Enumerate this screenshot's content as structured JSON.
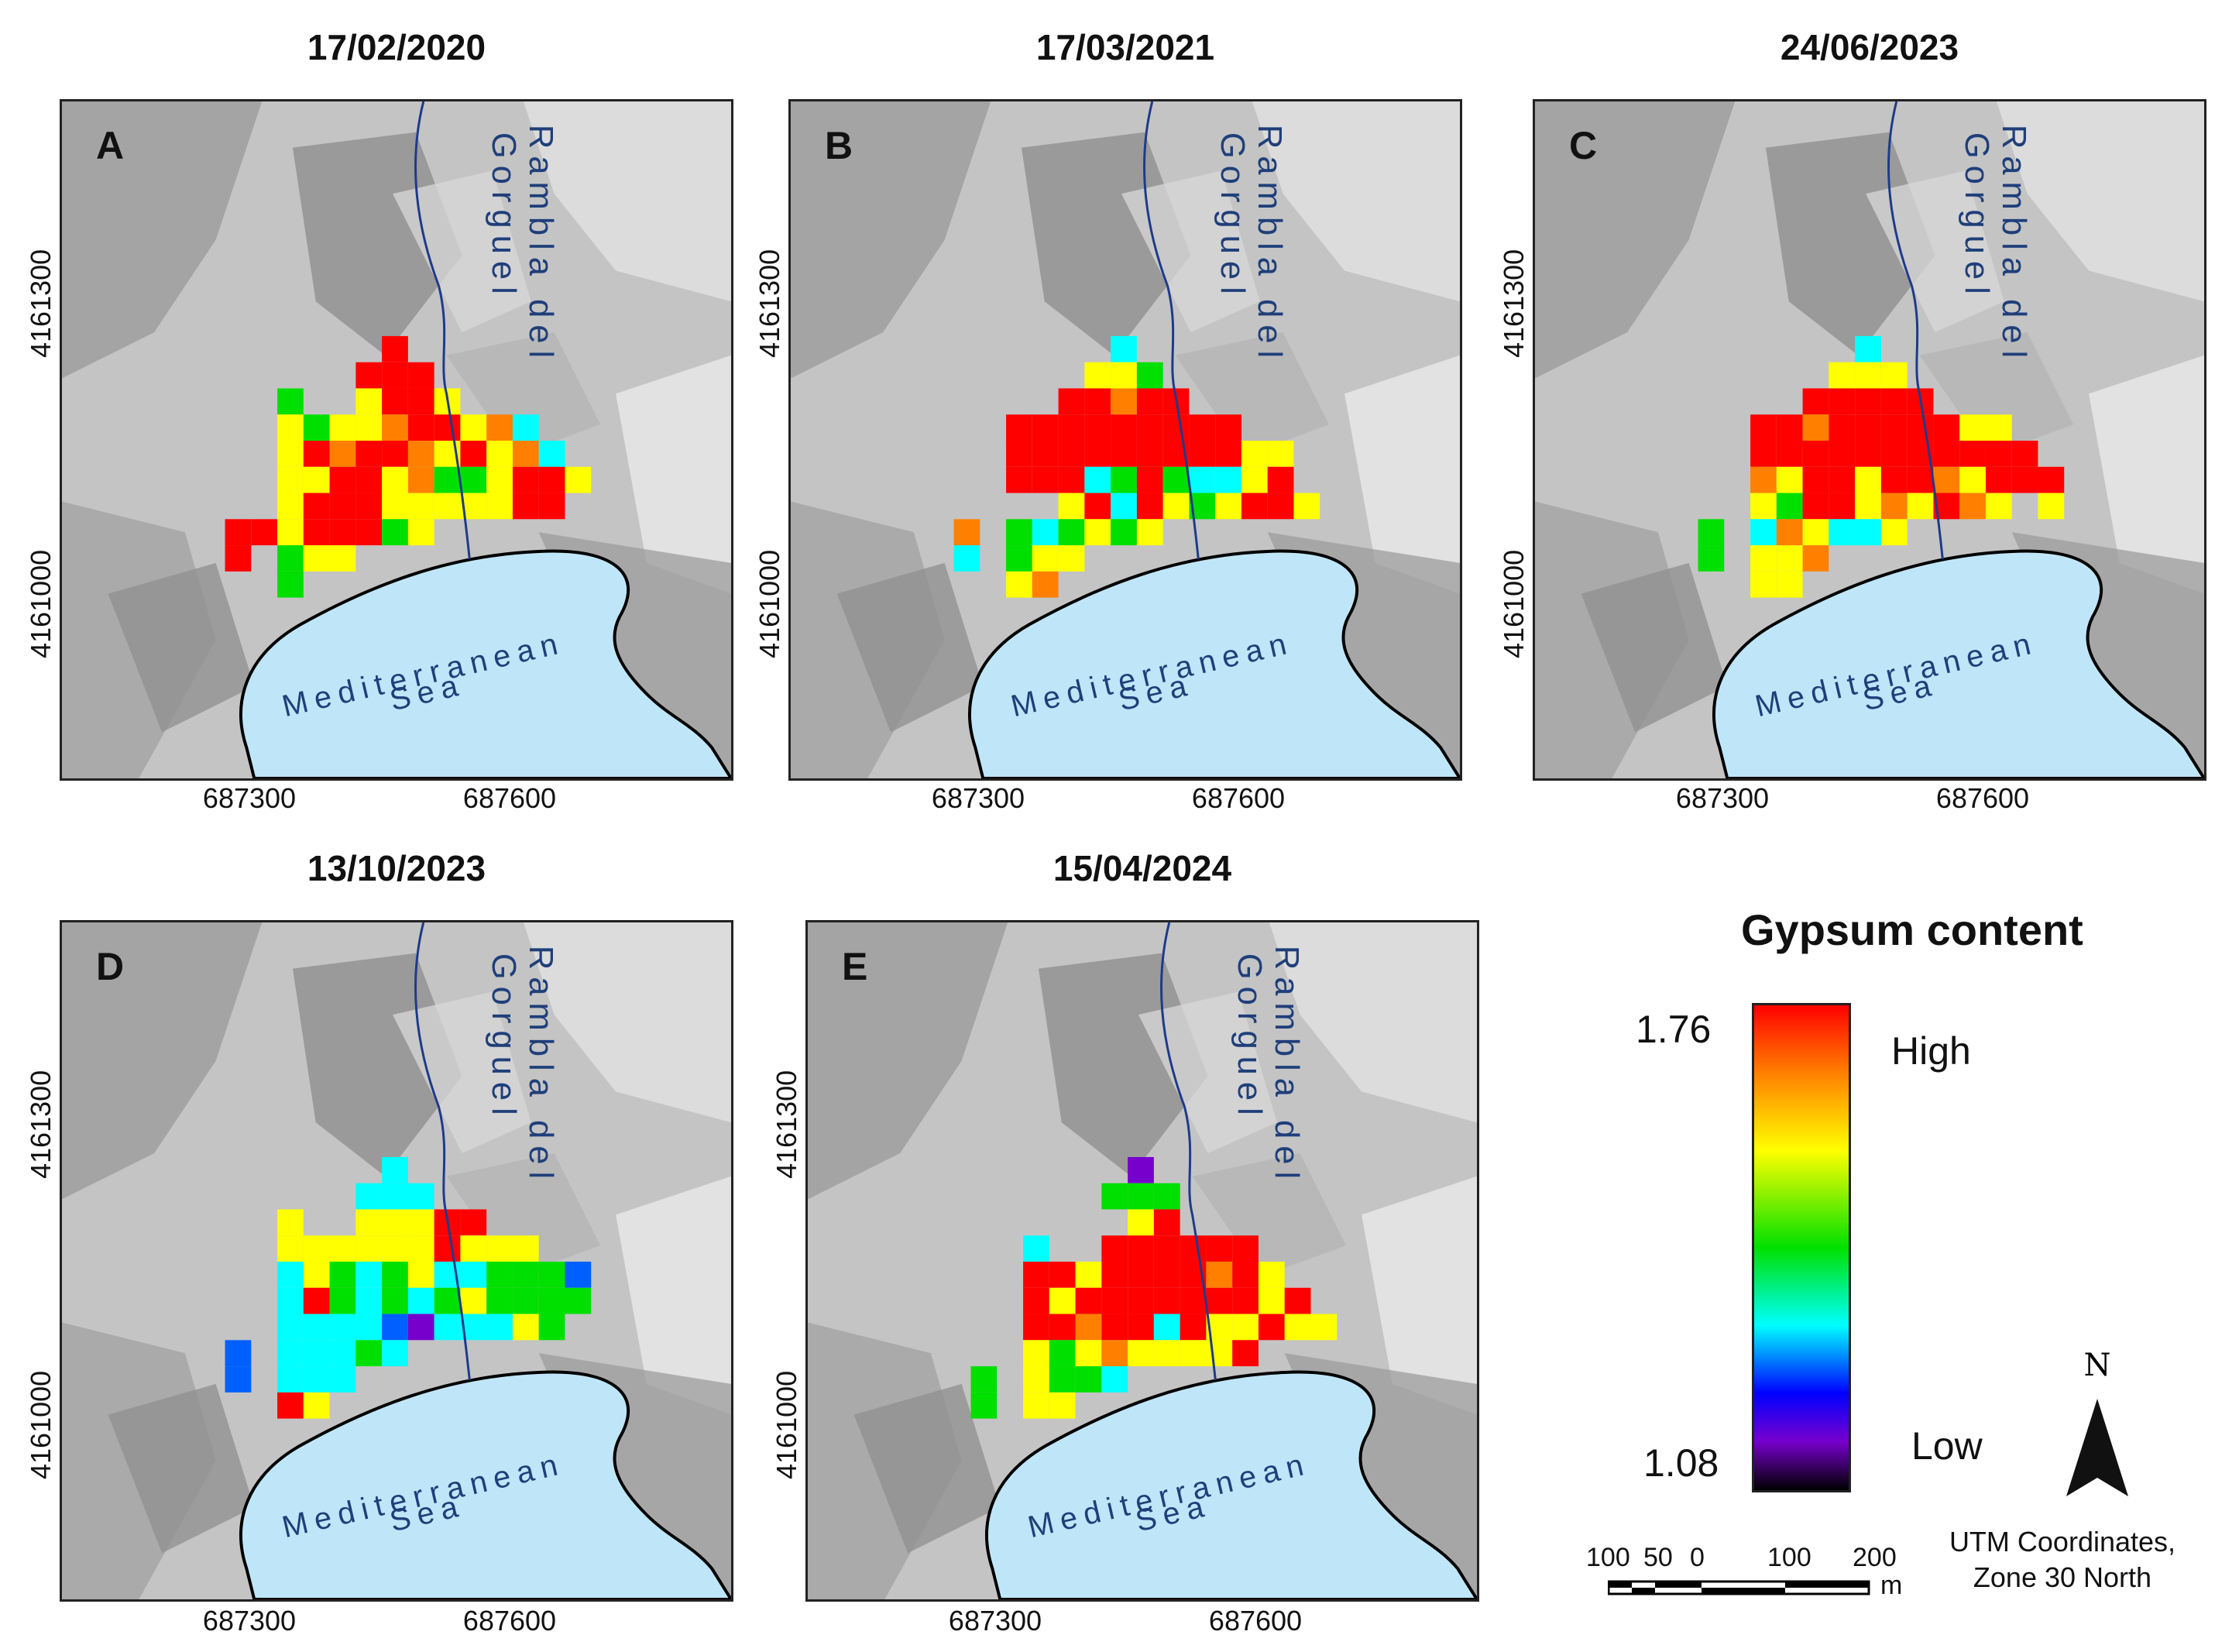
{
  "panels": [
    {
      "letter": "A",
      "date": "17/02/2020"
    },
    {
      "letter": "B",
      "date": "17/03/2021"
    },
    {
      "letter": "C",
      "date": "24/06/2023"
    },
    {
      "letter": "D",
      "date": "13/10/2023"
    },
    {
      "letter": "E",
      "date": "15/04/2024"
    }
  ],
  "map_labels": {
    "river_line1": "Rambla del",
    "river_line2": "Gorguel",
    "sea_line1": "Mediterranean",
    "sea_line2": "Sea"
  },
  "axes": {
    "x_ticks": [
      "687300",
      "687600"
    ],
    "y_ticks": [
      "4161300",
      "4161000"
    ]
  },
  "legend": {
    "title": "Gypsum content",
    "max_value": "1.76",
    "min_value": "1.08",
    "high_label": "High",
    "low_label": "Low"
  },
  "north_arrow": {
    "label": "N"
  },
  "scale_bar": {
    "labels": [
      "100",
      "50",
      "0",
      "100",
      "200"
    ],
    "unit": "m"
  },
  "projection": {
    "line1": "UTM Coordinates,",
    "line2": "Zone 30 North"
  },
  "colors": {
    "sea": "#bfe6f8",
    "river": "#1e3a8a",
    "label_blue": "#1f3f7a"
  }
}
